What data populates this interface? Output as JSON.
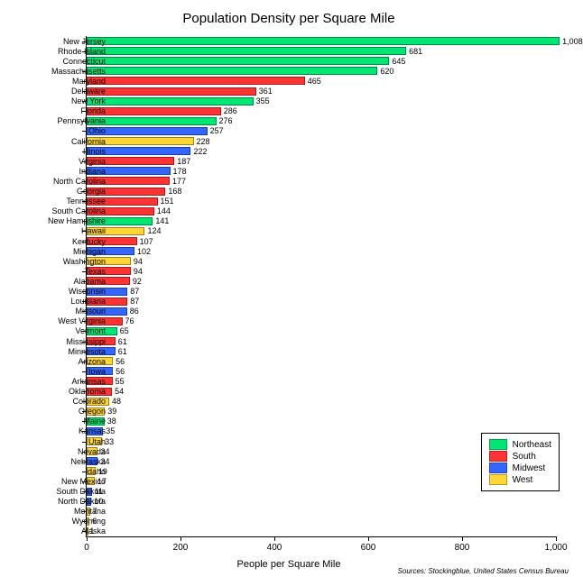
{
  "chart": {
    "type": "bar",
    "title": "Population Density per Square Mile",
    "title_fontsize": 15,
    "x_axis_label": "People per Square Mile",
    "label_fontsize": 11,
    "xlim": [
      0,
      1000
    ],
    "xtick_step": 200,
    "xticks": [
      0,
      200,
      400,
      600,
      800,
      1000
    ],
    "xtick_labels": [
      "0",
      "200",
      "400",
      "600",
      "800",
      "1,000"
    ],
    "background_color": "#ffffff",
    "bar_border": "rgba(0,0,0,0.4)",
    "region_colors": {
      "Northeast": "#00e673",
      "South": "#ff3333",
      "Midwest": "#3366ff",
      "West": "#ffd633"
    },
    "sources": "Sources: Stockingblue, United States Census Bureau",
    "legend": {
      "items": [
        {
          "label": "Northeast",
          "color": "#00e673"
        },
        {
          "label": "South",
          "color": "#ff3333"
        },
        {
          "label": "Midwest",
          "color": "#3366ff"
        },
        {
          "label": "West",
          "color": "#ffd633"
        }
      ]
    },
    "data": [
      {
        "state": "New Jersey",
        "value": 1008,
        "region": "Northeast"
      },
      {
        "state": "Rhode Island",
        "value": 681,
        "region": "Northeast"
      },
      {
        "state": "Connecticut",
        "value": 645,
        "region": "Northeast"
      },
      {
        "state": "Massachusetts",
        "value": 620,
        "region": "Northeast"
      },
      {
        "state": "Maryland",
        "value": 465,
        "region": "South"
      },
      {
        "state": "Delaware",
        "value": 361,
        "region": "South"
      },
      {
        "state": "New York",
        "value": 355,
        "region": "Northeast"
      },
      {
        "state": "Florida",
        "value": 286,
        "region": "South"
      },
      {
        "state": "Pennsylvania",
        "value": 276,
        "region": "Northeast"
      },
      {
        "state": "Ohio",
        "value": 257,
        "region": "Midwest"
      },
      {
        "state": "California",
        "value": 228,
        "region": "West"
      },
      {
        "state": "Illinois",
        "value": 222,
        "region": "Midwest"
      },
      {
        "state": "Virginia",
        "value": 187,
        "region": "South"
      },
      {
        "state": "Indiana",
        "value": 178,
        "region": "Midwest"
      },
      {
        "state": "North Carolina",
        "value": 177,
        "region": "South"
      },
      {
        "state": "Georgia",
        "value": 168,
        "region": "South"
      },
      {
        "state": "Tennessee",
        "value": 151,
        "region": "South"
      },
      {
        "state": "South Carolina",
        "value": 144,
        "region": "South"
      },
      {
        "state": "New Hampshire",
        "value": 141,
        "region": "Northeast"
      },
      {
        "state": "Hawaii",
        "value": 124,
        "region": "West"
      },
      {
        "state": "Kentucky",
        "value": 107,
        "region": "South"
      },
      {
        "state": "Michigan",
        "value": 102,
        "region": "Midwest"
      },
      {
        "state": "Washington",
        "value": 94,
        "region": "West"
      },
      {
        "state": "Texas",
        "value": 94,
        "region": "South"
      },
      {
        "state": "Alabama",
        "value": 92,
        "region": "South"
      },
      {
        "state": "Wisconsin",
        "value": 87,
        "region": "Midwest"
      },
      {
        "state": "Louisiana",
        "value": 87,
        "region": "South"
      },
      {
        "state": "Missouri",
        "value": 86,
        "region": "Midwest"
      },
      {
        "state": "West Virginia",
        "value": 76,
        "region": "South"
      },
      {
        "state": "Vermont",
        "value": 65,
        "region": "Northeast"
      },
      {
        "state": "Mississippi",
        "value": 61,
        "region": "South"
      },
      {
        "state": "Minnesota",
        "value": 61,
        "region": "Midwest"
      },
      {
        "state": "Arizona",
        "value": 56,
        "region": "West"
      },
      {
        "state": "Iowa",
        "value": 56,
        "region": "Midwest"
      },
      {
        "state": "Arkansas",
        "value": 55,
        "region": "South"
      },
      {
        "state": "Oklahoma",
        "value": 54,
        "region": "South"
      },
      {
        "state": "Colorado",
        "value": 48,
        "region": "West"
      },
      {
        "state": "Oregon",
        "value": 39,
        "region": "West"
      },
      {
        "state": "Maine",
        "value": 38,
        "region": "Northeast"
      },
      {
        "state": "Kansas",
        "value": 35,
        "region": "Midwest"
      },
      {
        "state": "Utah",
        "value": 33,
        "region": "West"
      },
      {
        "state": "Nevada",
        "value": 24,
        "region": "West"
      },
      {
        "state": "Nebraska",
        "value": 24,
        "region": "Midwest"
      },
      {
        "state": "Idaho",
        "value": 19,
        "region": "West"
      },
      {
        "state": "New Mexico",
        "value": 17,
        "region": "West"
      },
      {
        "state": "South Dakota",
        "value": 11,
        "region": "Midwest"
      },
      {
        "state": "North Dakota",
        "value": 10,
        "region": "Midwest"
      },
      {
        "state": "Montana",
        "value": 7,
        "region": "West"
      },
      {
        "state": "Wyoming",
        "value": 6,
        "region": "West"
      },
      {
        "state": "Alaska",
        "value": 1,
        "region": "West"
      }
    ]
  }
}
